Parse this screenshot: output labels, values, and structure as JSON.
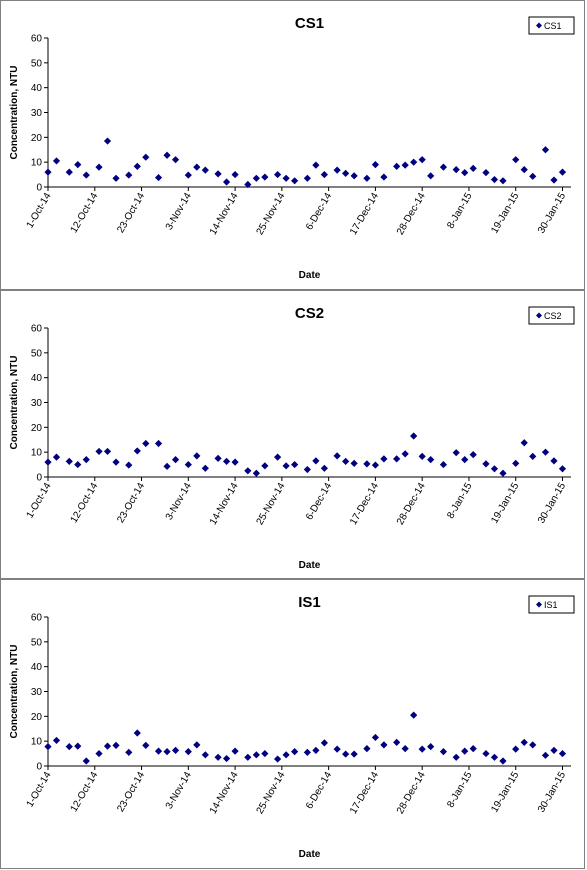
{
  "chart_data": [
    {
      "type": "scatter",
      "title": "CS1",
      "xlabel": "Date",
      "ylabel": "Concentration, NTU",
      "ylim": [
        0,
        60
      ],
      "yticks": [
        "0",
        "10",
        "20",
        "30",
        "40",
        "50",
        "60"
      ],
      "xticks": [
        "1-Oct-14",
        "12-Oct-14",
        "23-Oct-14",
        "3-Nov-14",
        "14-Nov-14",
        "25-Nov-14",
        "6-Dec-14",
        "17-Dec-14",
        "28-Dec-14",
        "8-Jan-15",
        "19-Jan-15",
        "30-Jan-15"
      ],
      "xrange": [
        "2014-10-01",
        "2015-02-01"
      ],
      "legend_position": "top-right",
      "color": "#000080",
      "marker": "diamond",
      "series": [
        {
          "name": "CS1",
          "x": [
            "2014-10-01",
            "2014-10-03",
            "2014-10-06",
            "2014-10-08",
            "2014-10-10",
            "2014-10-13",
            "2014-10-15",
            "2014-10-17",
            "2014-10-20",
            "2014-10-22",
            "2014-10-24",
            "2014-10-27",
            "2014-10-29",
            "2014-10-31",
            "2014-11-03",
            "2014-11-05",
            "2014-11-07",
            "2014-11-10",
            "2014-11-12",
            "2014-11-14",
            "2014-11-17",
            "2014-11-19",
            "2014-11-21",
            "2014-11-24",
            "2014-11-26",
            "2014-11-28",
            "2014-12-01",
            "2014-12-03",
            "2014-12-05",
            "2014-12-08",
            "2014-12-10",
            "2014-12-12",
            "2014-12-15",
            "2014-12-17",
            "2014-12-19",
            "2014-12-22",
            "2014-12-24",
            "2014-12-26",
            "2014-12-28",
            "2014-12-30",
            "2015-01-02",
            "2015-01-05",
            "2015-01-07",
            "2015-01-09",
            "2015-01-12",
            "2015-01-14",
            "2015-01-16",
            "2015-01-19",
            "2015-01-21",
            "2015-01-23",
            "2015-01-26",
            "2015-01-28",
            "2015-01-30"
          ],
          "y": [
            6,
            10.5,
            6,
            9,
            4.8,
            8,
            18.5,
            3.5,
            4.8,
            8.3,
            12,
            3.8,
            12.8,
            11,
            4.8,
            8,
            6.8,
            5.3,
            2,
            5,
            1,
            3.5,
            4,
            5,
            3.5,
            2.5,
            3.5,
            8.8,
            5,
            6.8,
            5.5,
            4.5,
            3.5,
            9,
            4,
            8.3,
            8.8,
            10,
            11,
            4.5,
            8,
            7,
            5.8,
            7.5,
            5.8,
            3,
            2.5,
            11,
            7,
            4.3,
            15,
            2.8,
            6
          ]
        }
      ]
    },
    {
      "type": "scatter",
      "title": "CS2",
      "xlabel": "Date",
      "ylabel": "Concentration, NTU",
      "ylim": [
        0,
        60
      ],
      "yticks": [
        "0",
        "10",
        "20",
        "30",
        "40",
        "50",
        "60"
      ],
      "xticks": [
        "1-Oct-14",
        "12-Oct-14",
        "23-Oct-14",
        "3-Nov-14",
        "14-Nov-14",
        "25-Nov-14",
        "6-Dec-14",
        "17-Dec-14",
        "28-Dec-14",
        "8-Jan-15",
        "19-Jan-15",
        "30-Jan-15"
      ],
      "xrange": [
        "2014-10-01",
        "2015-02-01"
      ],
      "legend_position": "top-right",
      "color": "#000080",
      "marker": "diamond",
      "series": [
        {
          "name": "CS2",
          "x": [
            "2014-10-01",
            "2014-10-03",
            "2014-10-06",
            "2014-10-08",
            "2014-10-10",
            "2014-10-13",
            "2014-10-15",
            "2014-10-17",
            "2014-10-20",
            "2014-10-22",
            "2014-10-24",
            "2014-10-27",
            "2014-10-29",
            "2014-10-31",
            "2014-11-03",
            "2014-11-05",
            "2014-11-07",
            "2014-11-10",
            "2014-11-12",
            "2014-11-14",
            "2014-11-17",
            "2014-11-19",
            "2014-11-21",
            "2014-11-24",
            "2014-11-26",
            "2014-11-28",
            "2014-12-01",
            "2014-12-03",
            "2014-12-05",
            "2014-12-08",
            "2014-12-10",
            "2014-12-12",
            "2014-12-15",
            "2014-12-17",
            "2014-12-19",
            "2014-12-22",
            "2014-12-24",
            "2014-12-26",
            "2014-12-28",
            "2014-12-30",
            "2015-01-02",
            "2015-01-05",
            "2015-01-07",
            "2015-01-09",
            "2015-01-12",
            "2015-01-14",
            "2015-01-16",
            "2015-01-19",
            "2015-01-21",
            "2015-01-23",
            "2015-01-26",
            "2015-01-28",
            "2015-01-30"
          ],
          "y": [
            6,
            8,
            6.3,
            5,
            7,
            10.3,
            10.3,
            6,
            4.8,
            10.5,
            13.5,
            13.5,
            4.3,
            7,
            5,
            8.5,
            3.5,
            7.5,
            6.3,
            6,
            2.5,
            1.5,
            4.5,
            8,
            4.5,
            5,
            3,
            6.5,
            3.5,
            8.5,
            6.3,
            5.5,
            5.3,
            4.8,
            7.3,
            7.3,
            9.3,
            16.5,
            8.3,
            7,
            5,
            9.8,
            7,
            9,
            5.3,
            3.3,
            1.5,
            5.5,
            13.8,
            8.3,
            10,
            6.5,
            3.3
          ]
        }
      ]
    },
    {
      "type": "scatter",
      "title": "IS1",
      "xlabel": "Date",
      "ylabel": "Concentration, NTU",
      "ylim": [
        0,
        60
      ],
      "yticks": [
        "0",
        "10",
        "20",
        "30",
        "40",
        "50",
        "60"
      ],
      "xticks": [
        "1-Oct-14",
        "12-Oct-14",
        "23-Oct-14",
        "3-Nov-14",
        "14-Nov-14",
        "25-Nov-14",
        "6-Dec-14",
        "17-Dec-14",
        "28-Dec-14",
        "8-Jan-15",
        "19-Jan-15",
        "30-Jan-15"
      ],
      "xrange": [
        "2014-10-01",
        "2015-02-01"
      ],
      "legend_position": "top-right",
      "color": "#000080",
      "marker": "diamond",
      "series": [
        {
          "name": "IS1",
          "x": [
            "2014-10-01",
            "2014-10-03",
            "2014-10-06",
            "2014-10-08",
            "2014-10-10",
            "2014-10-13",
            "2014-10-15",
            "2014-10-17",
            "2014-10-20",
            "2014-10-22",
            "2014-10-24",
            "2014-10-27",
            "2014-10-29",
            "2014-10-31",
            "2014-11-03",
            "2014-11-05",
            "2014-11-07",
            "2014-11-10",
            "2014-11-12",
            "2014-11-14",
            "2014-11-17",
            "2014-11-19",
            "2014-11-21",
            "2014-11-24",
            "2014-11-26",
            "2014-11-28",
            "2014-12-01",
            "2014-12-03",
            "2014-12-05",
            "2014-12-08",
            "2014-12-10",
            "2014-12-12",
            "2014-12-15",
            "2014-12-17",
            "2014-12-19",
            "2014-12-22",
            "2014-12-24",
            "2014-12-26",
            "2014-12-28",
            "2014-12-30",
            "2015-01-02",
            "2015-01-05",
            "2015-01-07",
            "2015-01-09",
            "2015-01-12",
            "2015-01-14",
            "2015-01-16",
            "2015-01-19",
            "2015-01-21",
            "2015-01-23",
            "2015-01-26",
            "2015-01-28",
            "2015-01-30"
          ],
          "y": [
            7.8,
            10.3,
            7.8,
            8,
            2,
            5,
            8,
            8.3,
            5.5,
            13.3,
            8.3,
            6,
            5.8,
            6.3,
            5.8,
            8.5,
            4.5,
            3.5,
            3,
            6,
            3.5,
            4.5,
            5,
            2.8,
            4.5,
            5.8,
            5.5,
            6.3,
            9.3,
            6.8,
            4.8,
            4.8,
            7,
            11.5,
            8.5,
            9.5,
            7,
            20.5,
            6.8,
            7.8,
            5.8,
            3.5,
            6,
            7,
            5,
            3.5,
            2,
            6.8,
            9.5,
            8.5,
            4.3,
            6.3,
            5
          ]
        }
      ]
    }
  ]
}
